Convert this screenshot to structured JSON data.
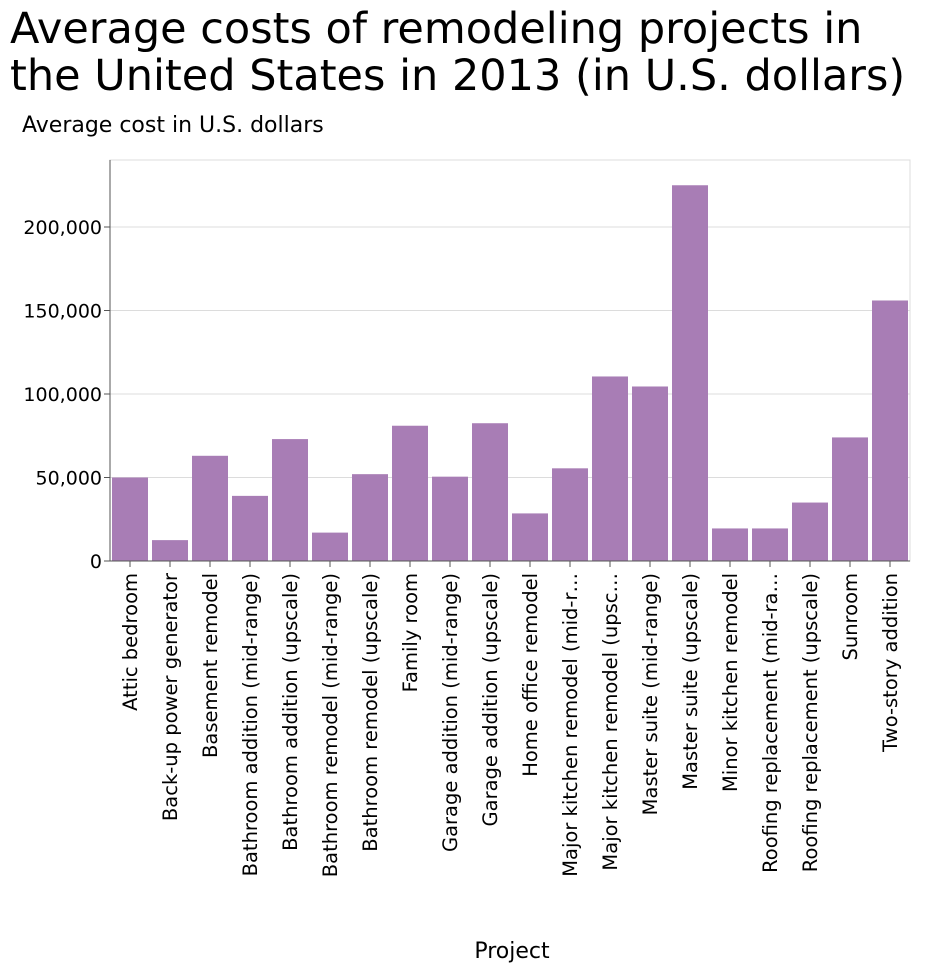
{
  "chart_data": {
    "type": "bar",
    "title": "Average costs of remodeling projects in the United States in 2013 (in U.S. dollars)",
    "ylabel": "Average cost in U.S. dollars",
    "xlabel": "Project",
    "ylim": [
      0,
      240000
    ],
    "yticks": [
      0,
      50000,
      100000,
      150000,
      200000
    ],
    "ytick_labels": [
      "0",
      "50,000",
      "100,000",
      "150,000",
      "200,000"
    ],
    "grid": true,
    "bar_color": "#a87db5",
    "categories": [
      "Attic bedroom",
      "Back-up power generator",
      "Basement remodel",
      "Bathroom addition (mid-range)",
      "Bathroom addition (upscale)",
      "Bathroom remodel (mid-range)",
      "Bathroom remodel (upscale)",
      "Family room",
      "Garage addition (mid-range)",
      "Garage addition (upscale)",
      "Home office remodel",
      "Major kitchen remodel (mid-r…",
      "Major kitchen remodel (upsc…",
      "Master suite (mid-range)",
      "Master suite (upscale)",
      "Minor kitchen remodel",
      "Roofing replacement (mid-ra…",
      "Roofing replacement (upscale)",
      "Sunroom",
      "Two-story addition"
    ],
    "values": [
      50000,
      12500,
      63000,
      39000,
      73000,
      17000,
      52000,
      81000,
      50500,
      82500,
      28500,
      55500,
      110500,
      104500,
      225000,
      19500,
      19500,
      35000,
      74000,
      156000
    ]
  }
}
